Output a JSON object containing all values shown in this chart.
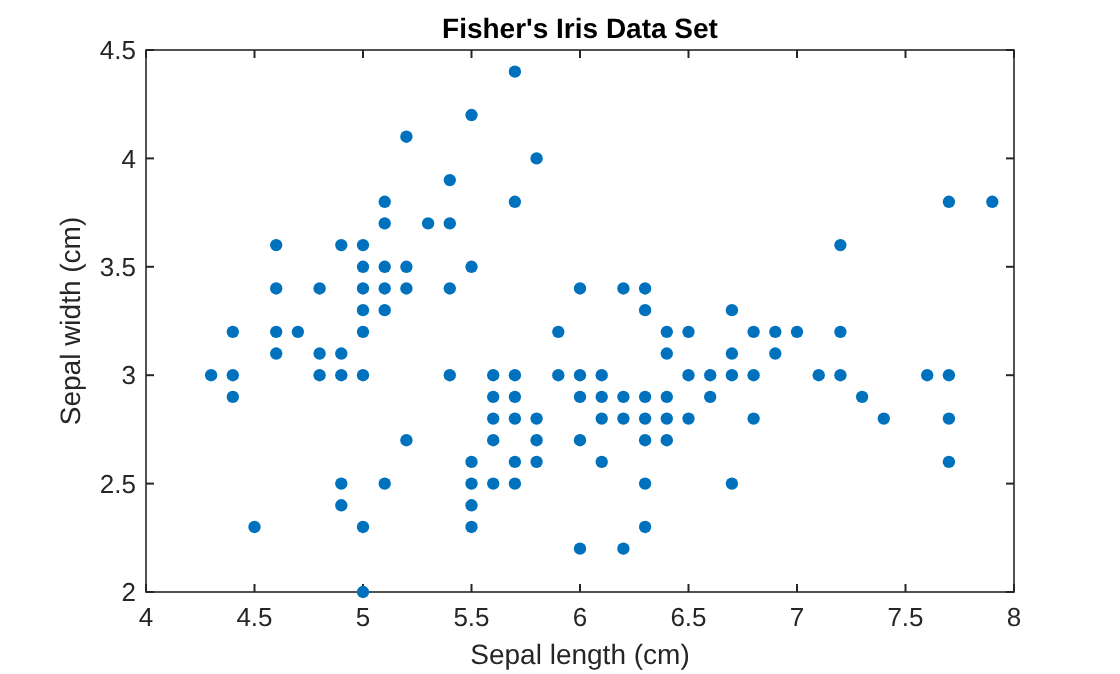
{
  "chart_data": {
    "type": "scatter",
    "title": "Fisher's Iris Data Set",
    "xlabel": "Sepal length (cm)",
    "ylabel": "Sepal width (cm)",
    "x": [
      4.3,
      4.4,
      4.4,
      4.4,
      4.5,
      4.6,
      4.6,
      4.6,
      4.6,
      4.7,
      4.8,
      4.8,
      4.8,
      4.9,
      4.9,
      4.9,
      4.9,
      4.9,
      5.0,
      5.0,
      5.0,
      5.0,
      5.0,
      5.0,
      5.0,
      5.0,
      5.1,
      5.1,
      5.1,
      5.1,
      5.1,
      5.1,
      5.2,
      5.2,
      5.2,
      5.2,
      5.3,
      5.4,
      5.4,
      5.4,
      5.4,
      5.5,
      5.5,
      5.5,
      5.5,
      5.5,
      5.5,
      5.6,
      5.6,
      5.6,
      5.6,
      5.6,
      5.7,
      5.7,
      5.7,
      5.7,
      5.7,
      5.7,
      5.7,
      5.8,
      5.8,
      5.8,
      5.8,
      5.9,
      5.9,
      6.0,
      6.0,
      6.0,
      6.0,
      6.0,
      6.1,
      6.1,
      6.1,
      6.1,
      6.2,
      6.2,
      6.2,
      6.2,
      6.3,
      6.3,
      6.3,
      6.3,
      6.3,
      6.3,
      6.3,
      6.4,
      6.4,
      6.4,
      6.4,
      6.4,
      6.5,
      6.5,
      6.5,
      6.6,
      6.6,
      6.7,
      6.7,
      6.7,
      6.7,
      6.8,
      6.8,
      6.8,
      6.9,
      6.9,
      7.0,
      7.1,
      7.2,
      7.2,
      7.2,
      7.3,
      7.4,
      7.6,
      7.7,
      7.7,
      7.7,
      7.7,
      7.9
    ],
    "series": [
      {
        "color": "#0072bd",
        "values": [
          3.0,
          2.9,
          3.0,
          3.2,
          2.3,
          3.1,
          3.4,
          3.6,
          3.2,
          3.2,
          3.4,
          3.0,
          3.1,
          3.0,
          3.1,
          3.6,
          2.4,
          2.5,
          3.6,
          3.4,
          3.0,
          3.2,
          3.5,
          3.3,
          2.0,
          2.3,
          3.5,
          3.8,
          3.7,
          3.3,
          3.4,
          2.5,
          3.5,
          3.4,
          4.1,
          2.7,
          3.7,
          3.9,
          3.7,
          3.4,
          3.0,
          4.2,
          3.5,
          2.3,
          2.4,
          2.5,
          2.6,
          2.9,
          3.0,
          2.5,
          2.7,
          2.8,
          4.4,
          3.8,
          2.8,
          2.6,
          3.0,
          2.9,
          2.5,
          4.0,
          2.7,
          2.6,
          2.8,
          3.0,
          3.2,
          2.2,
          2.9,
          2.7,
          3.4,
          3.0,
          2.9,
          2.8,
          3.0,
          2.6,
          2.2,
          2.9,
          2.8,
          3.4,
          3.3,
          2.5,
          2.3,
          2.9,
          2.7,
          2.8,
          3.4,
          3.2,
          2.9,
          2.7,
          2.8,
          3.1,
          2.8,
          3.0,
          3.2,
          2.9,
          3.0,
          3.1,
          3.0,
          2.5,
          3.3,
          2.8,
          3.0,
          3.2,
          3.1,
          3.2,
          3.2,
          3.0,
          3.6,
          3.2,
          3.0,
          2.9,
          2.8,
          3.0,
          3.8,
          2.6,
          2.8,
          3.0,
          3.8
        ]
      }
    ],
    "xlim": [
      4,
      8
    ],
    "ylim": [
      2,
      4.5
    ],
    "xticks": [
      4,
      4.5,
      5,
      5.5,
      6,
      6.5,
      7,
      7.5,
      8
    ],
    "yticks": [
      2,
      2.5,
      3,
      3.5,
      4,
      4.5
    ],
    "marker": "circle"
  }
}
